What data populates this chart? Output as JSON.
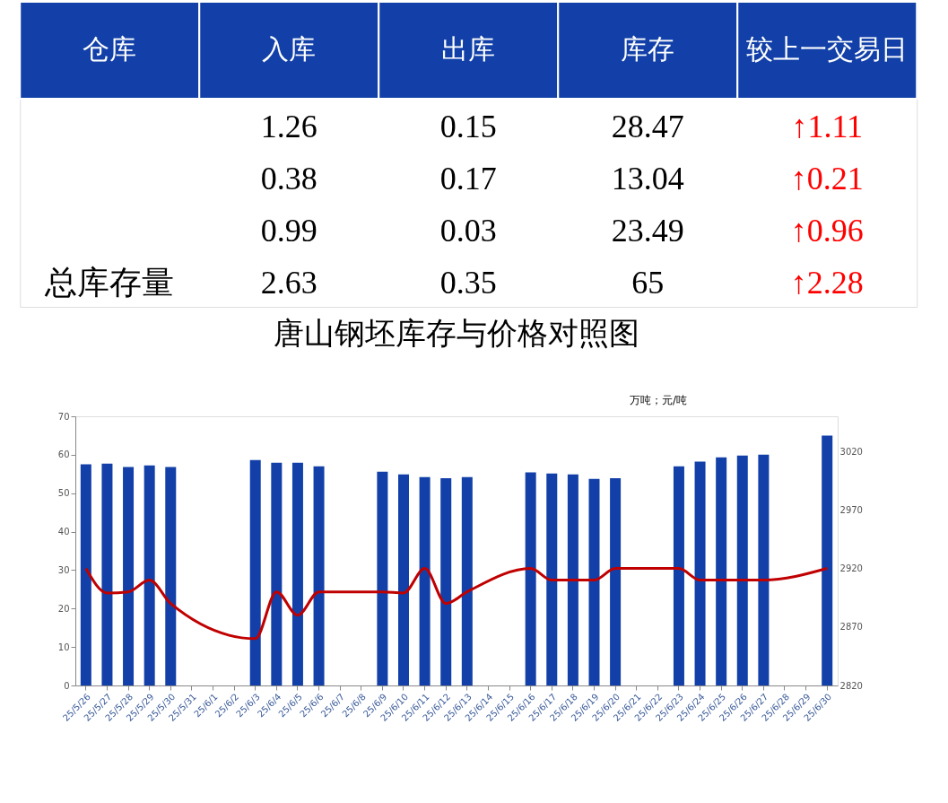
{
  "chart_data": [
    {
      "type": "other",
      "categories": [
        "仓库",
        "入库",
        "出库",
        "库存",
        "较上一交易日"
      ],
      "y_categories": [
        null,
        null,
        null,
        "总库存量"
      ],
      "colors": [
        "#1240a8",
        "#1240a8",
        "#1240a8",
        "#1240a8",
        "#1240a8"
      ],
      "annotations": [
        "1.26",
        "0.15",
        "28.47",
        "↑1.11",
        "0.38",
        "0.17",
        "13.04",
        "↑0.21",
        "0.99",
        "0.03",
        "23.49",
        "↑0.96",
        "2.63",
        "0.35",
        "65",
        "↑2.28"
      ]
    },
    {
      "type": "bar",
      "title": "唐山钢坯库存与价格对照图",
      "annotations": [
        "万吨；元/吨"
      ],
      "categories": [
        "25/5/26",
        "25/5/27",
        "25/5/28",
        "25/5/29",
        "25/5/30",
        "25/5/31",
        "25/6/1",
        "25/6/2",
        "25/6/3",
        "25/6/4",
        "25/6/5",
        "25/6/6",
        "25/6/7",
        "25/6/8",
        "25/6/9",
        "25/6/10",
        "25/6/11",
        "25/6/12",
        "25/6/13",
        "25/6/14",
        "25/6/15",
        "25/6/16",
        "25/6/17",
        "25/6/18",
        "25/6/19",
        "25/6/20",
        "25/6/21",
        "25/6/22",
        "25/6/23",
        "25/6/24",
        "25/6/25",
        "25/6/26",
        "25/6/27",
        "25/6/28",
        "25/6/29",
        "25/6/30"
      ],
      "ylim": [
        0,
        70
      ],
      "yticks": [
        0,
        10,
        20,
        30,
        40,
        50,
        60,
        70
      ],
      "y2lim": [
        2820,
        3050
      ],
      "y2ticks": [
        2820,
        2870,
        2920,
        2970,
        3020
      ],
      "grid": false,
      "series": [
        {
          "type": "bar",
          "color": "#1240a8",
          "values": [
            57.5,
            57.7,
            56.8,
            57.2,
            56.8,
            null,
            null,
            null,
            58.6,
            57.9,
            57.9,
            57.0,
            null,
            null,
            55.6,
            54.9,
            54.2,
            53.9,
            54.2,
            null,
            null,
            55.4,
            55.1,
            54.9,
            53.7,
            53.9,
            null,
            null,
            57.0,
            58.2,
            59.3,
            59.8,
            60.0,
            null,
            null,
            65
          ]
        },
        {
          "type": "line",
          "axis": "y2",
          "color": "#c00000",
          "marker": "none",
          "line_style": "solid",
          "x": [
            "25/5/26",
            "25/5/27",
            "25/5/28",
            "25/5/29",
            "25/5/30",
            "25/6/3",
            "25/6/4",
            "25/6/5",
            "25/6/6",
            "25/6/9",
            "25/6/10",
            "25/6/11",
            "25/6/12",
            "25/6/13",
            "25/6/16",
            "25/6/17",
            "25/6/18",
            "25/6/19",
            "25/6/20",
            "25/6/23",
            "25/6/24",
            "25/6/25",
            "25/6/26",
            "25/6/27",
            "25/6/30"
          ],
          "values": [
            2920,
            2899,
            2900,
            2910,
            2890,
            2860,
            2900,
            2880,
            2900,
            2900,
            2899,
            2920,
            2890,
            2900,
            2920,
            2910,
            2910,
            2910,
            2920,
            2920,
            2910,
            2910,
            2910,
            2910,
            2920
          ]
        }
      ]
    }
  ]
}
